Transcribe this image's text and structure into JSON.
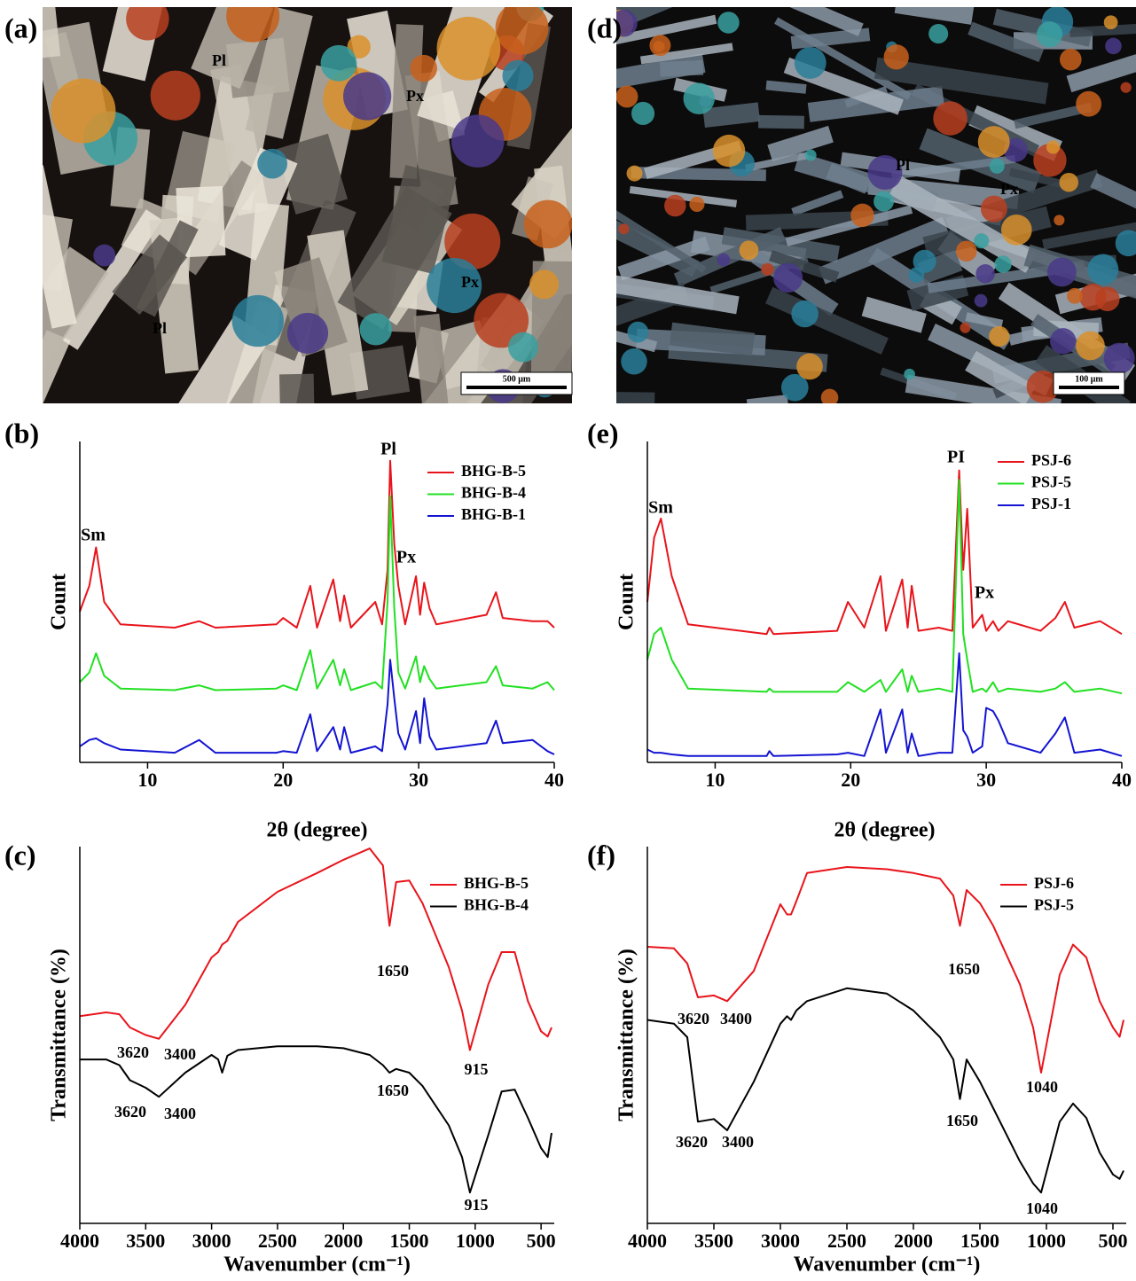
{
  "micrographs": [
    {
      "panel_label": "(a)",
      "labels": [
        "Pl",
        "Px",
        "Px",
        "Pl"
      ],
      "scale_bar": "500 μm"
    },
    {
      "panel_label": "(d)",
      "labels": [
        "Pl",
        "Px"
      ],
      "scale_bar": "100 μm"
    }
  ],
  "chart_data": [
    {
      "type": "line",
      "panel_label": "(b)",
      "xlabel": "2θ (degree)",
      "ylabel": "Count",
      "annotations": [
        "Sm",
        "Pl",
        "Px"
      ],
      "xlim": [
        5,
        40
      ],
      "xticks": [
        10,
        20,
        30,
        40
      ],
      "ylim": [
        0,
        100
      ],
      "x": [
        5,
        5.7,
        6.2,
        6.8,
        8,
        12,
        13.8,
        15,
        19.5,
        20,
        21,
        22.0,
        22.5,
        23.7,
        24.2,
        24.5,
        25,
        26.8,
        27.3,
        27.7,
        27.9,
        28.2,
        28.5,
        29,
        29.8,
        30.1,
        30.4,
        30.8,
        31.3,
        35,
        35.7,
        36.2,
        38.4,
        39.5,
        40
      ],
      "series": [
        {
          "name": "BHG-B-5",
          "color": "#e8141b",
          "values": [
            47,
            55,
            67,
            50,
            43,
            42,
            44,
            42,
            43,
            45,
            42,
            55,
            42,
            57,
            44,
            52,
            42,
            50,
            43,
            60,
            94,
            68,
            55,
            43,
            58,
            46,
            56,
            48,
            43,
            46,
            53,
            45,
            44,
            44,
            42
          ]
        },
        {
          "name": "BHG-B-4",
          "color": "#22e022",
          "values": [
            25,
            28,
            34,
            27,
            23,
            22.5,
            24,
            22.5,
            23,
            24,
            22.5,
            35,
            23,
            32,
            24,
            29,
            22.5,
            25,
            23,
            50,
            83,
            48,
            28,
            23,
            33,
            25,
            30,
            26,
            23,
            25,
            30,
            24,
            23,
            25,
            22.5
          ]
        },
        {
          "name": "BHG-B-1",
          "color": "#1414d2",
          "values": [
            5,
            7,
            7.5,
            6,
            4,
            3,
            7,
            3,
            3,
            3.5,
            3,
            15,
            3.5,
            11,
            4,
            11,
            3,
            5,
            3.5,
            18,
            32,
            20,
            9,
            4,
            16,
            6,
            20,
            8,
            4,
            6,
            13,
            6,
            7,
            3.5,
            2.5
          ]
        }
      ]
    },
    {
      "type": "line",
      "panel_label": "(c)",
      "xlabel": "Wavenumber (cm⁻¹)",
      "ylabel": "Transmittance (%)",
      "xlim": [
        4000,
        400
      ],
      "xticks": [
        4000,
        3500,
        3000,
        2500,
        2000,
        1500,
        1000,
        500
      ],
      "ylim": [
        0,
        100
      ],
      "x": [
        4000,
        3800,
        3700,
        3620,
        3500,
        3400,
        3200,
        3000,
        2950,
        2920,
        2880,
        2800,
        2500,
        2200,
        2000,
        1800,
        1700,
        1650,
        1600,
        1500,
        1400,
        1200,
        1100,
        1040,
        900,
        800,
        700,
        600,
        500,
        450,
        420
      ],
      "series": [
        {
          "name": "BHG-B-5",
          "color": "#e8141b",
          "annotations": [
            3620,
            3400,
            1650,
            915
          ],
          "values": [
            55,
            56,
            55.5,
            52,
            50,
            49,
            58,
            70.6,
            72,
            74,
            75,
            80,
            88,
            93,
            96.5,
            99.5,
            95,
            79,
            90.6,
            91,
            85,
            68,
            56.5,
            46,
            63.5,
            72,
            72,
            59,
            51,
            49.6,
            52
          ]
        },
        {
          "name": "BHG-B-4",
          "color": "#000000",
          "annotations": [
            3620,
            3400,
            1650,
            915
          ],
          "values": [
            43.5,
            43.5,
            42,
            38,
            36,
            33.6,
            40,
            44.7,
            43.5,
            40,
            44.5,
            46,
            47,
            47,
            46.5,
            44.7,
            42,
            40,
            41,
            40,
            36.5,
            26,
            17.6,
            8.2,
            23.5,
            35,
            35.5,
            28,
            20,
            17.6,
            24
          ]
        }
      ]
    },
    {
      "type": "line",
      "panel_label": "(e)",
      "xlabel": "2θ (degree)",
      "ylabel": "Count",
      "annotations": [
        "Sm",
        "PI",
        "Px"
      ],
      "xlim": [
        5,
        40
      ],
      "xticks": [
        10,
        20,
        30,
        40
      ],
      "ylim": [
        0,
        100
      ],
      "x": [
        5,
        5.5,
        6,
        6.8,
        8,
        13.8,
        14,
        14.3,
        19,
        19.8,
        21,
        22.2,
        22.6,
        23.8,
        24.2,
        24.5,
        25,
        26.5,
        27.5,
        28,
        28.3,
        28.6,
        29,
        29.7,
        30,
        30.5,
        30.9,
        31.6,
        34,
        35.1,
        35.8,
        36.5,
        38.4,
        40
      ],
      "series": [
        {
          "name": "PSJ-6",
          "color": "#e8141b",
          "values": [
            50,
            70,
            76,
            58,
            43,
            40,
            42,
            40,
            41,
            50,
            42,
            58,
            41,
            57,
            42,
            55,
            41,
            42,
            41,
            91,
            60,
            79,
            42,
            46,
            41,
            44,
            41,
            44,
            41,
            45,
            50,
            42,
            44,
            40
          ]
        },
        {
          "name": "PSJ-5",
          "color": "#22e022",
          "values": [
            32,
            40,
            42,
            32,
            23,
            22,
            23,
            22,
            22,
            25,
            22,
            25.7,
            22,
            29,
            22,
            27,
            22,
            23,
            22,
            88,
            40,
            32,
            22,
            23,
            22,
            25,
            22,
            23,
            22,
            23,
            25,
            22,
            23,
            21.5
          ]
        },
        {
          "name": "PSJ-1",
          "color": "#1414d2",
          "values": [
            4,
            3,
            3,
            2.5,
            2,
            2,
            3.5,
            2,
            2.5,
            3,
            2,
            16.5,
            3,
            16.5,
            3,
            9,
            2,
            3,
            3,
            34,
            10,
            8,
            3,
            5,
            17,
            16,
            13,
            6,
            3,
            9,
            14,
            3,
            4,
            2
          ]
        }
      ]
    },
    {
      "type": "line",
      "panel_label": "(f)",
      "xlabel": "Wavenumber (cm⁻¹)",
      "ylabel": "Transmittance (%)",
      "xlim": [
        4000,
        400
      ],
      "xticks": [
        4000,
        3500,
        3000,
        2500,
        2000,
        1500,
        1000,
        500
      ],
      "ylim": [
        0,
        100
      ],
      "x": [
        4000,
        3800,
        3700,
        3620,
        3500,
        3400,
        3200,
        3000,
        2950,
        2920,
        2880,
        2800,
        2500,
        2200,
        2000,
        1800,
        1700,
        1650,
        1600,
        1500,
        1400,
        1200,
        1100,
        1040,
        900,
        800,
        700,
        600,
        500,
        450,
        420
      ],
      "series": [
        {
          "name": "PSJ-6",
          "color": "#e8141b",
          "annotations": [
            3620,
            3400,
            1650,
            1040
          ],
          "values": [
            73.4,
            73,
            69,
            60,
            60.5,
            59,
            67,
            84.7,
            82,
            82,
            85.5,
            93,
            94.6,
            94,
            93,
            91.5,
            87,
            79,
            88.5,
            85,
            79,
            63.5,
            52,
            40,
            66,
            74,
            70.6,
            59,
            52,
            49.5,
            54
          ]
        },
        {
          "name": "PSJ-5",
          "color": "#000000",
          "annotations": [
            3620,
            3400,
            1650,
            1040
          ],
          "values": [
            54,
            53,
            49.4,
            27,
            27.7,
            24.7,
            37.6,
            53,
            55,
            54,
            56.5,
            59,
            62.4,
            61,
            56.5,
            49.4,
            43.5,
            33,
            43.5,
            37.6,
            30.6,
            16.5,
            10.6,
            8.2,
            27,
            31.8,
            28,
            18.8,
            13,
            11.8,
            14
          ]
        }
      ]
    }
  ]
}
